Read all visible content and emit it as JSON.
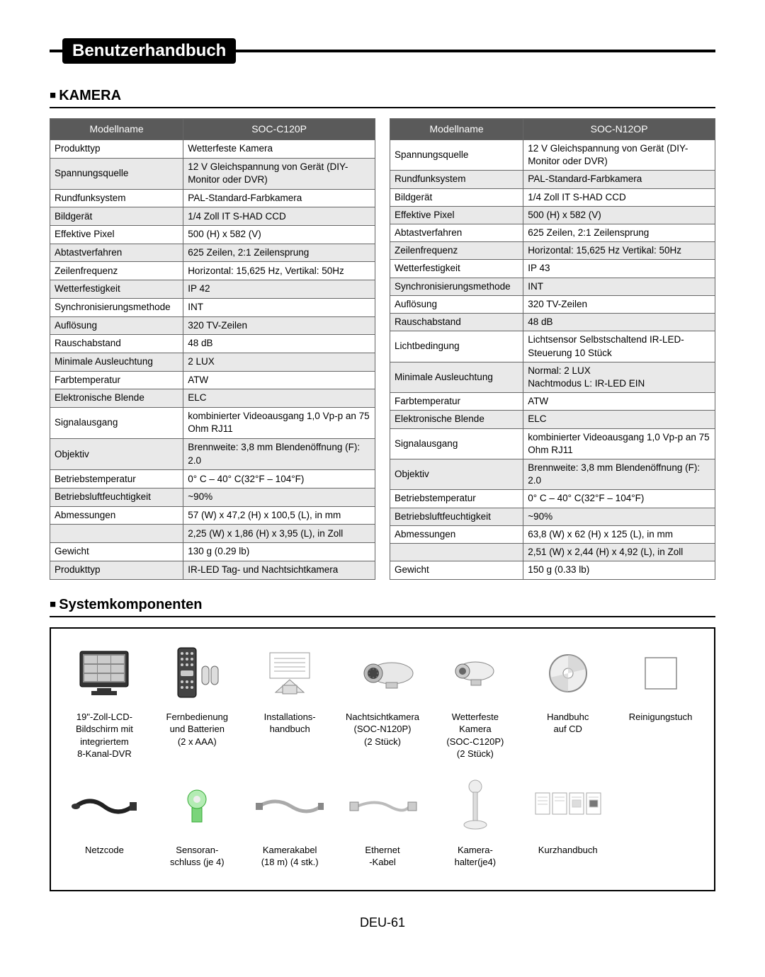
{
  "header": {
    "title": "Benutzerhandbuch"
  },
  "section_kamera": {
    "heading": "KAMERA"
  },
  "table_left": {
    "col1": "Modellname",
    "col2": "SOC-C120P",
    "rows": [
      [
        "Produkttyp",
        "Wetterfeste Kamera"
      ],
      [
        "Spannungsquelle",
        "12 V Gleichspannung von Gerät (DIY-Monitor oder DVR)"
      ],
      [
        "Rundfunksystem",
        "PAL-Standard-Farbkamera"
      ],
      [
        "Bildgerät",
        "1/4 Zoll IT S-HAD CCD"
      ],
      [
        "Effektive Pixel",
        "500 (H) x 582 (V)"
      ],
      [
        "Abtastverfahren",
        "625 Zeilen, 2:1 Zeilensprung"
      ],
      [
        "Zeilenfrequenz",
        "Horizontal: 15,625 Hz, Vertikal: 50Hz"
      ],
      [
        "Wetterfestigkeit",
        "IP 42"
      ],
      [
        "Synchronisierungsmethode",
        "INT"
      ],
      [
        "Auflösung",
        "320 TV-Zeilen"
      ],
      [
        "Rauschabstand",
        "48 dB"
      ],
      [
        "Minimale Ausleuchtung",
        "2 LUX"
      ],
      [
        "Farbtemperatur",
        "ATW"
      ],
      [
        "Elektronische Blende",
        "ELC"
      ],
      [
        "Signalausgang",
        "kombinierter Videoausgang 1,0 Vp-p an 75 Ohm RJ11"
      ],
      [
        "Objektiv",
        "Brennweite: 3,8 mm Blendenöffnung (F): 2.0"
      ],
      [
        "Betriebstemperatur",
        "0° C – 40° C(32°F – 104°F)"
      ],
      [
        "Betriebsluftfeuchtigkeit",
        "~90%"
      ],
      [
        "Abmessungen",
        "57 (W) x 47,2 (H) x 100,5 (L), in mm"
      ],
      [
        "",
        "2,25 (W) x 1,86 (H) x 3,95 (L), in Zoll"
      ],
      [
        "Gewicht",
        "130 g (0.29 lb)"
      ],
      [
        "Produkttyp",
        "IR-LED Tag- und Nachtsichtkamera"
      ]
    ]
  },
  "table_right": {
    "col1": "Modellname",
    "col2": "SOC-N12OP",
    "rows": [
      [
        "Spannungsquelle",
        "12 V Gleichspannung von Gerät (DIY-Monitor oder DVR)"
      ],
      [
        "Rundfunksystem",
        "PAL-Standard-Farbkamera"
      ],
      [
        "Bildgerät",
        "1/4 Zoll IT S-HAD CCD"
      ],
      [
        "Effektive Pixel",
        "500 (H) x 582 (V)"
      ],
      [
        "Abtastverfahren",
        "625 Zeilen, 2:1 Zeilensprung"
      ],
      [
        "Zeilenfrequenz",
        "Horizontal: 15,625 Hz Vertikal: 50Hz"
      ],
      [
        "Wetterfestigkeit",
        "IP 43"
      ],
      [
        "Synchronisierungsmethode",
        "INT"
      ],
      [
        "Auflösung",
        "320 TV-Zeilen"
      ],
      [
        "Rauschabstand",
        "48 dB"
      ],
      [
        "Lichtbedingung",
        "Lichtsensor Selbstschaltend IR-LED-Steuerung 10 Stück"
      ],
      [
        "Minimale Ausleuchtung",
        "Normal: 2 LUX\nNachtmodus L: IR-LED EIN"
      ],
      [
        "Farbtemperatur",
        "ATW"
      ],
      [
        "Elektronische Blende",
        "ELC"
      ],
      [
        "Signalausgang",
        "kombinierter Videoausgang 1,0 Vp-p an 75 Ohm RJ11"
      ],
      [
        "Objektiv",
        "Brennweite: 3,8 mm Blendenöffnung (F): 2.0"
      ],
      [
        "Betriebstemperatur",
        "0° C – 40° C(32°F – 104°F)"
      ],
      [
        "Betriebsluftfeuchtigkeit",
        "~90%"
      ],
      [
        "Abmessungen",
        "63,8 (W) x 62 (H) x 125 (L), in mm"
      ],
      [
        "",
        "2,51 (W) x 2,44 (H) x 4,92 (L), in Zoll"
      ],
      [
        "Gewicht",
        "150 g (0.33 lb)"
      ]
    ]
  },
  "section_components": {
    "heading": "Systemkomponenten",
    "row1": [
      {
        "icon": "monitor",
        "label": "19\"-Zoll-LCD-\nBildschirm mit\nintegriertem\n8-Kanal-DVR"
      },
      {
        "icon": "remote",
        "label": "Fernbedienung\nund Batterien\n(2 x AAA)"
      },
      {
        "icon": "manual",
        "label": "Installations-\nhandbuch"
      },
      {
        "icon": "camera-ir",
        "label": "Nachtsichtkamera\n(SOC-N120P)\n(2 Stück)"
      },
      {
        "icon": "camera",
        "label": "Wetterfeste\nKamera\n(SOC-C120P)\n(2 Stück)"
      },
      {
        "icon": "cd",
        "label": "Handbuhc\nauf CD"
      },
      {
        "icon": "cloth",
        "label": "Reinigungstuch"
      }
    ],
    "row2": [
      {
        "icon": "power-cord",
        "label": "Netzcode"
      },
      {
        "icon": "sensor",
        "label": "Sensoran-\nschluss (je 4)"
      },
      {
        "icon": "cable",
        "label": "Kamerakabel\n(18 m) (4 stk.)"
      },
      {
        "icon": "ethernet",
        "label": "Ethernet\n-Kabel"
      },
      {
        "icon": "mount",
        "label": "Kamera-\nhalter(je4)"
      },
      {
        "icon": "guide",
        "label": "Kurzhandbuch"
      },
      {
        "icon": "",
        "label": ""
      }
    ]
  },
  "page_number": "DEU-61",
  "colors": {
    "header_bg": "#000000",
    "header_fg": "#ffffff",
    "table_header_bg": "#5a5a5a",
    "row_alt_bg": "#e9e9e9",
    "border": "#666666"
  },
  "fonts": {
    "body_pt": 13.5,
    "heading_pt": 20,
    "title_pt": 24
  }
}
